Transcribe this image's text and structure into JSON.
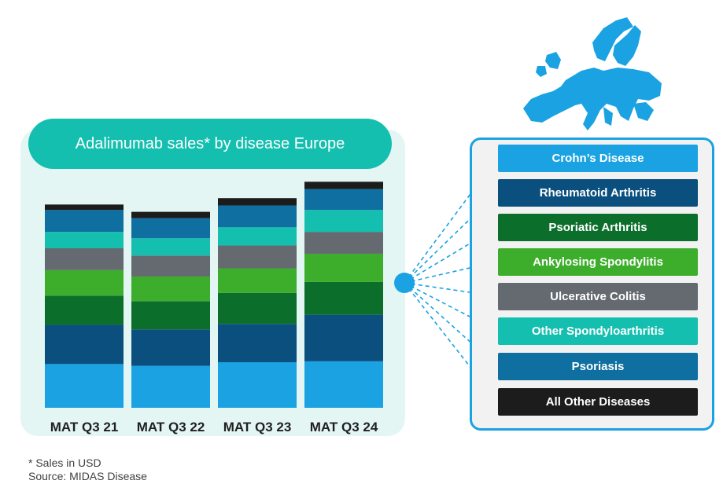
{
  "title": "Adalimumab sales* by disease Europe",
  "footnotes": [
    "* Sales in USD",
    "Source: MIDAS Disease"
  ],
  "colors": {
    "crohns": "#1aa2e2",
    "rheumatoid": "#0a4f7e",
    "psoriatic": "#0c6e2b",
    "ankylosing": "#3dae2b",
    "ulcerative": "#646a70",
    "other_spa": "#14bfaf",
    "psoriasis": "#0f6fa0",
    "all_other": "#1c1c1c",
    "panel": "#e4f6f4",
    "title_pill": "#14bfaf",
    "map": "#1aa2e2"
  },
  "legend": [
    {
      "label": "Crohn’s Disease",
      "color": "#1aa2e2"
    },
    {
      "label": "Rheumatoid Arthritis",
      "color": "#0a4f7e"
    },
    {
      "label": "Psoriatic Arthritis",
      "color": "#0c6e2b"
    },
    {
      "label": "Ankylosing Spondylitis",
      "color": "#3dae2b"
    },
    {
      "label": "Ulcerative Colitis",
      "color": "#646a70"
    },
    {
      "label": "Other Spondyloarthritis",
      "color": "#14bfaf"
    },
    {
      "label": "Psoriasis",
      "color": "#0f6fa0"
    },
    {
      "label": "All Other Diseases",
      "color": "#1c1c1c"
    }
  ],
  "map_icon": "europe-map-icon",
  "chart_data": {
    "type": "bar",
    "stacked": true,
    "title": "Adalimumab sales* by disease Europe",
    "xlabel": "",
    "ylabel": "",
    "y_axis_shown": false,
    "grid": false,
    "legend_placement": "right",
    "ylim": [
      0,
      250
    ],
    "categories": [
      "MAT Q3 21",
      "MAT Q3 22",
      "MAT Q3 23",
      "MAT Q3 24"
    ],
    "series": [
      {
        "name": "Crohn’s Disease",
        "color": "#1aa2e2",
        "values": [
          48,
          46,
          50,
          51
        ]
      },
      {
        "name": "Rheumatoid Arthritis",
        "color": "#0a4f7e",
        "values": [
          43,
          40,
          42,
          51
        ]
      },
      {
        "name": "Psoriatic Arthritis",
        "color": "#0c6e2b",
        "values": [
          32,
          31,
          34,
          36
        ]
      },
      {
        "name": "Ankylosing Spondylitis",
        "color": "#3dae2b",
        "values": [
          28,
          27,
          27,
          31
        ]
      },
      {
        "name": "Ulcerative Colitis",
        "color": "#646a70",
        "values": [
          24,
          23,
          25,
          24
        ]
      },
      {
        "name": "Other Spondyloarthritis",
        "color": "#14bfaf",
        "values": [
          18,
          19,
          20,
          24
        ]
      },
      {
        "name": "Psoriasis",
        "color": "#0f6fa0",
        "values": [
          24,
          22,
          24,
          23
        ]
      },
      {
        "name": "All Other Diseases",
        "color": "#1c1c1c",
        "values": [
          6,
          7,
          8,
          8
        ]
      }
    ]
  }
}
